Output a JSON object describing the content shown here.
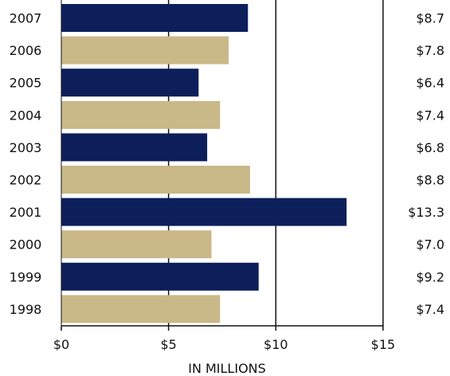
{
  "chart_data": {
    "type": "bar",
    "orientation": "horizontal",
    "categories": [
      "2007",
      "2006",
      "2005",
      "2004",
      "2003",
      "2002",
      "2001",
      "2000",
      "1999",
      "1998"
    ],
    "values": [
      8.7,
      7.8,
      6.4,
      7.4,
      6.8,
      8.8,
      13.3,
      7.0,
      9.2,
      7.4
    ],
    "value_labels": [
      "$8.7",
      "$7.8",
      "$6.4",
      "$7.4",
      "$6.8",
      "$8.8",
      "$13.3",
      "$7.0",
      "$9.2",
      "$7.4"
    ],
    "xlim": [
      0,
      15
    ],
    "xticks": [
      0,
      5,
      10,
      15
    ],
    "xtick_labels": [
      "$0",
      "$5",
      "$10",
      "$15"
    ],
    "xlabel": "IN MILLIONS",
    "ylabel": "",
    "title": "",
    "grid": "vertical lines at $5, $10, $15",
    "colors": {
      "navy": "#0d1f5b",
      "tan": "#c9b888",
      "axis": "#111111"
    },
    "color_pattern": [
      "navy",
      "tan"
    ]
  }
}
